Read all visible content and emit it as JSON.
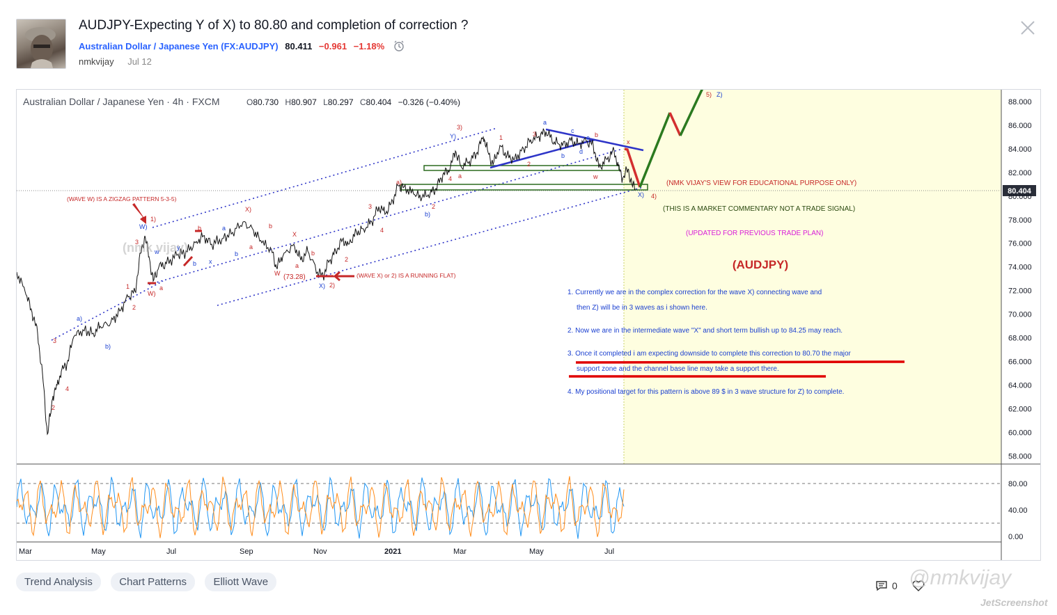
{
  "idea": {
    "title": "AUDJPY-Expecting Y of X) to 80.80 and completion of correction ?",
    "symbol_name": "Australian Dollar / Japanese Yen",
    "symbol_ticker_open": "(",
    "symbol_ticker": "FX:AUDJPY",
    "symbol_ticker_close": ")",
    "price": "80.411",
    "change": "−0.961",
    "change_pct": "−1.18%",
    "author": "nmkvijay",
    "date": "Jul 12",
    "comments_count": "0"
  },
  "icons": {
    "close": "close-icon",
    "alarm": "alarm-clock-icon",
    "comment": "comment-icon",
    "like": "heart-icon"
  },
  "colors": {
    "link": "#2962ff",
    "negative": "#e53935",
    "forecast_bg": "#fefee0",
    "up_arrow": "#2b7a1f",
    "down_arrow": "#d32f2f",
    "channel": "#2e35c8",
    "stoch_k": "#2196f3",
    "stoch_d": "#ff8c1a"
  },
  "chart": {
    "header_title": "Australian Dollar / Japanese Yen · 4h · FXCM",
    "ohlc": {
      "o_label": "O",
      "o": "80.730",
      "h_label": "H",
      "h": "80.907",
      "l_label": "L",
      "l": "80.297",
      "c_label": "C",
      "c": "80.404",
      "change": "−0.326 (−0.40%)"
    },
    "last_price_label": "80.404",
    "price_axis": [
      "88.000",
      "86.000",
      "84.000",
      "82.000",
      "80.000",
      "78.000",
      "76.000",
      "74.000",
      "72.000",
      "70.000",
      "68.000",
      "66.000",
      "64.000",
      "62.000",
      "60.000",
      "58.000"
    ],
    "osc_axis": [
      "80.00",
      "40.00",
      "0.00"
    ],
    "time_axis": [
      "Mar",
      "May",
      "Jul",
      "Sep",
      "Nov",
      "2021",
      "Mar",
      "May",
      "Jul"
    ],
    "annotations": {
      "educational": "(NMK VIJAY'S VIEW FOR EDUCATIONAL PURPOSE ONLY)",
      "commentary": "(THIS IS A MARKET COMMENTARY NOT A TRADE SIGNAL)",
      "updated": "(UPDATED FOR PREVIOUS TRADE PLAN)",
      "symbol_big": "(AUDJPY)",
      "wave_w_note": "(WAVE W) IS A ZIGZAG PATTERN 5-3-5)",
      "wave_x_note": "(WAVE X) or 2) IS A RUNNING FLAT)",
      "low_label": "(73.28)",
      "notes": [
        "1. Currently we are in the complex correction for the wave X) connecting wave and",
        "then Z) will be in 3 waves as i shown here.",
        "2. Now we are in the intermediate wave \"X\" and short term bullish up to 84.25 may reach.",
        "3. Once it completed i am expecting downside to complete this correction to 80.70 the major",
        "support zone and the channel base line may take a support there.",
        "4. My positional target for this pattern is above 89 $ in 3 wave structure for Z) to complete."
      ],
      "watermark_chart": "(nmk vijay)"
    },
    "wave_labels": {
      "target5": "5)",
      "targetZ": "Z)",
      "w_paren": "W)",
      "x_paren": "X)",
      "y_paren": "Y)",
      "x_end": "X)",
      "one": "1)",
      "two": "2)",
      "three": "3)",
      "four": "4)",
      "a_paren": "a)",
      "b_paren": "b)",
      "a": "a",
      "b": "b",
      "c": "c",
      "d": "d",
      "e": "e",
      "w": "w",
      "x": "x",
      "y": "y",
      "W": "W",
      "X": "X",
      "n1": "1",
      "n2": "2",
      "n3": "3",
      "n4": "4",
      "n5": "5"
    }
  },
  "tags": [
    "Trend Analysis",
    "Chart Patterns",
    "Elliott Wave"
  ],
  "watermark": "@nmkvijay",
  "screenshot_credit": "JetScreenshot"
}
